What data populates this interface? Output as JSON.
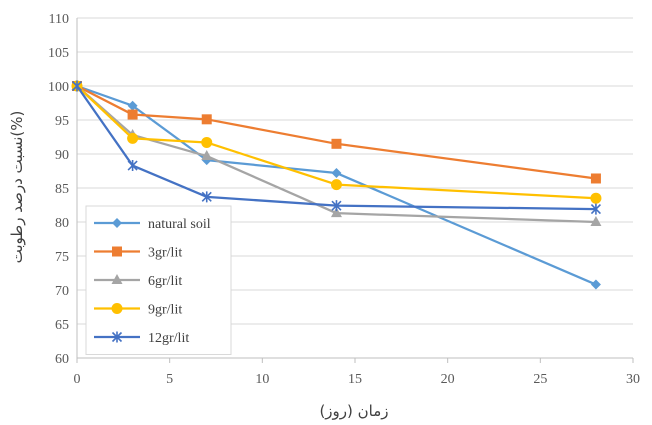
{
  "chart_data": {
    "type": "line",
    "xlabel": "زمان (روز)",
    "ylabel": "نسبت درصد رطوبت(%)",
    "xlim": [
      0,
      30
    ],
    "ylim": [
      60,
      110
    ],
    "x_ticks": [
      "0",
      "5",
      "10",
      "15",
      "20",
      "25",
      "30"
    ],
    "y_ticks": [
      "60",
      "65",
      "70",
      "75",
      "80",
      "85",
      "90",
      "95",
      "100",
      "105",
      "110"
    ],
    "grid": "horizontal",
    "legend_position": "bottom-left",
    "series": [
      {
        "name": "natural soil",
        "color": "#5B9BD5",
        "marker": "diamond",
        "x": [
          0,
          3,
          7,
          14,
          28
        ],
        "y": [
          100,
          97.1,
          89.1,
          87.2,
          70.8
        ]
      },
      {
        "name": "3gr/lit",
        "color": "#ED7D31",
        "marker": "square",
        "x": [
          0,
          3,
          7,
          14,
          28
        ],
        "y": [
          100,
          95.8,
          95.1,
          91.5,
          86.4
        ]
      },
      {
        "name": "6gr/lit",
        "color": "#A5A5A5",
        "marker": "triangle",
        "x": [
          0,
          3,
          7,
          14,
          28
        ],
        "y": [
          100,
          92.8,
          89.7,
          81.3,
          80.0
        ]
      },
      {
        "name": "9gr/lit",
        "color": "#FFC000",
        "marker": "circle",
        "x": [
          0,
          3,
          7,
          14,
          28
        ],
        "y": [
          100,
          92.3,
          91.7,
          85.5,
          83.5
        ]
      },
      {
        "name": "12gr/lit",
        "color": "#4472C4",
        "marker": "star",
        "x": [
          0,
          3,
          7,
          14,
          28
        ],
        "y": [
          100,
          88.3,
          83.7,
          82.4,
          81.9
        ]
      }
    ]
  }
}
